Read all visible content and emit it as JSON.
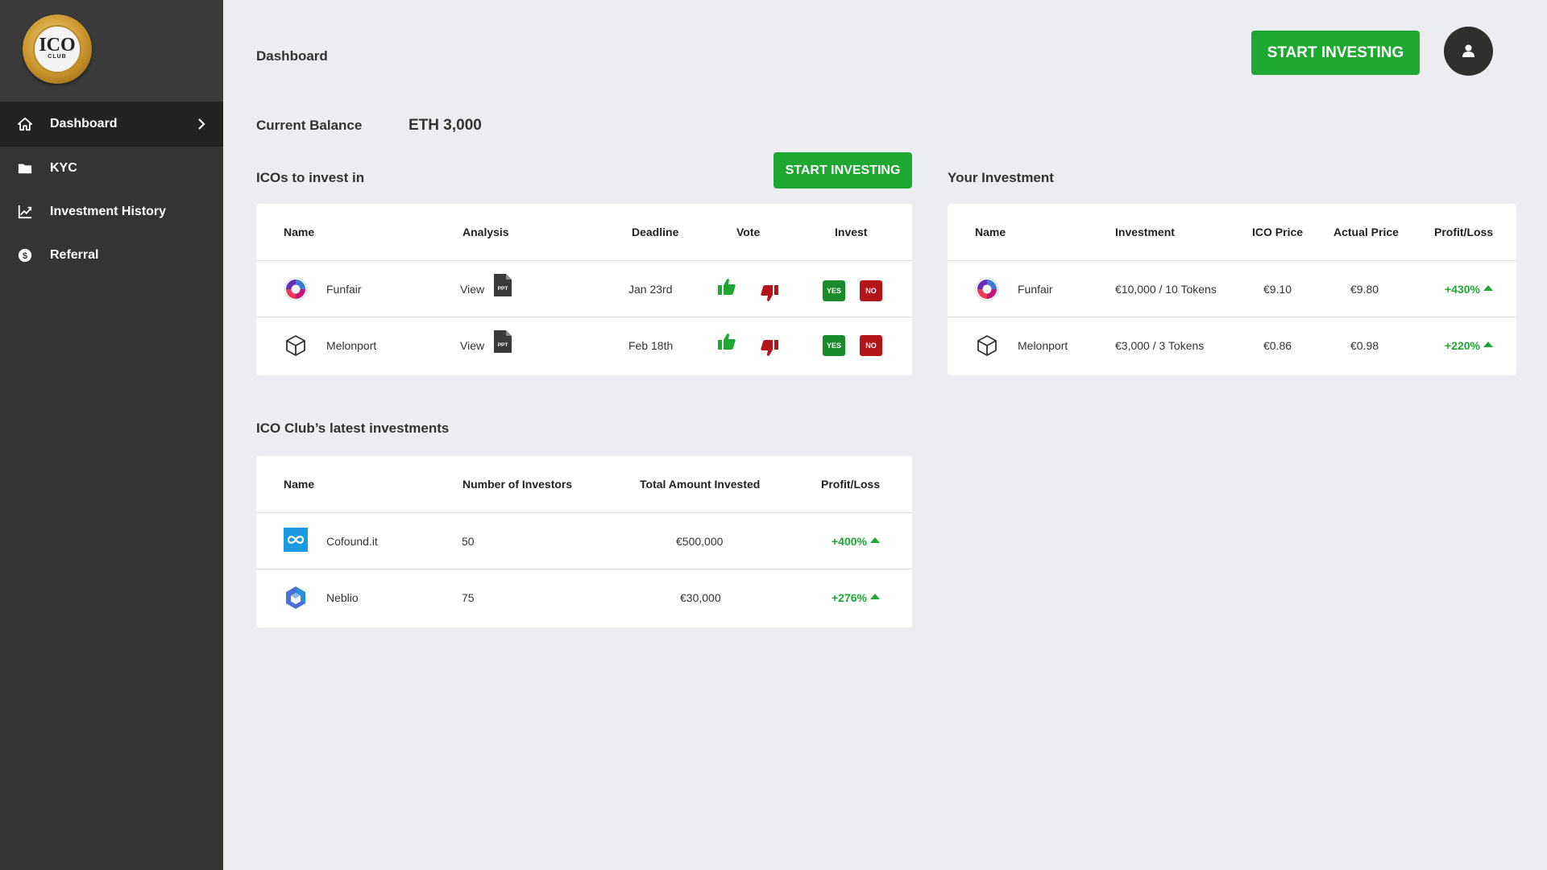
{
  "brand": {
    "logo_text": "ICO",
    "logo_sub": "CLUB",
    "accent": "#1ea832",
    "negative": "#b3151a"
  },
  "sidebar": {
    "items": [
      {
        "label": "Dashboard",
        "icon": "home-icon",
        "active": true
      },
      {
        "label": "KYC",
        "icon": "folder-icon"
      },
      {
        "label": "Investment History",
        "icon": "line-chart-icon"
      },
      {
        "label": "Referral",
        "icon": "dollar-circle-icon"
      }
    ]
  },
  "header": {
    "title": "Dashboard",
    "cta": "START INVESTING",
    "avatar_icon": "user-icon"
  },
  "balance": {
    "label": "Current Balance",
    "value": "ETH 3,000"
  },
  "icos": {
    "title": "ICOs to invest in",
    "cta": "START INVESTING",
    "columns": [
      "Name",
      "Analysis",
      "Deadline",
      "Vote",
      "Invest"
    ],
    "rows": [
      {
        "name": "Funfair",
        "analysis": "View",
        "doc_badge": "PPT",
        "deadline": "Jan 23rd",
        "yes": "YES",
        "no": "NO"
      },
      {
        "name": "Melonport",
        "analysis": "View",
        "doc_badge": "PPT",
        "deadline": "Feb 18th",
        "yes": "YES",
        "no": "NO"
      }
    ]
  },
  "your_investment": {
    "title": "Your Investment",
    "columns": [
      "Name",
      "Investment",
      "ICO Price",
      "Actual Price",
      "Profit/Loss"
    ],
    "rows": [
      {
        "name": "Funfair",
        "investment": "€10,000 / 10 Tokens",
        "ico_price": "€9.10",
        "actual_price": "€9.80",
        "profit": "+430%"
      },
      {
        "name": "Melonport",
        "investment": "€3,000 / 3 Tokens",
        "ico_price": "€0.86",
        "actual_price": "€0.98",
        "profit": "+220%"
      }
    ]
  },
  "club_investments": {
    "title": "ICO Club’s latest investments",
    "columns": [
      "Name",
      "Number of Investors",
      "Total Amount Invested",
      "Profit/Loss"
    ],
    "rows": [
      {
        "name": "Cofound.it",
        "investors": "50",
        "total": "€500,000",
        "profit": "+400%"
      },
      {
        "name": "Neblio",
        "investors": "75",
        "total": "€30,000",
        "profit": "+276%"
      }
    ]
  }
}
